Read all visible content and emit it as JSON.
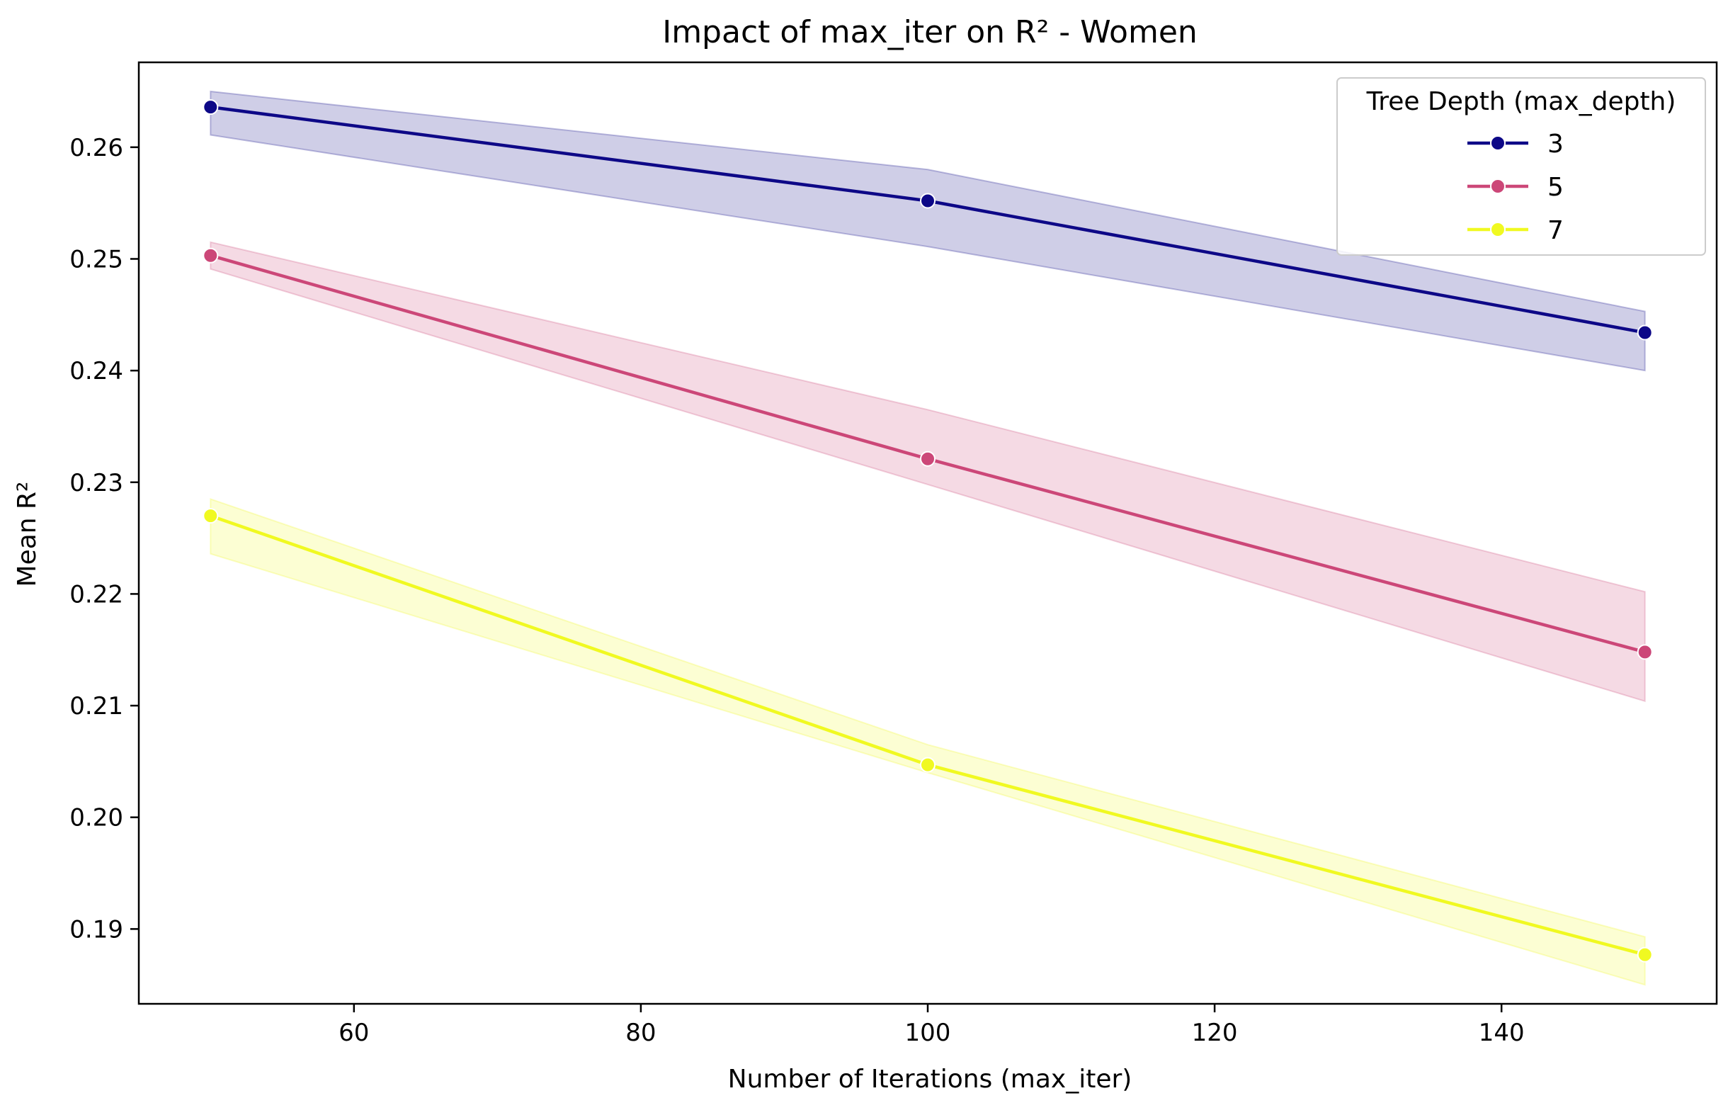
{
  "chart_data": {
    "type": "line",
    "title": "Impact of max_iter on R² - Women",
    "xlabel": "Number of Iterations (max_iter)",
    "ylabel": "Mean R²",
    "xlim": [
      45,
      155
    ],
    "ylim": [
      0.1833,
      0.2676
    ],
    "xticks": [
      60,
      80,
      100,
      120,
      140
    ],
    "xtick_labels": [
      "60",
      "80",
      "100",
      "120",
      "140"
    ],
    "yticks": [
      0.19,
      0.2,
      0.21,
      0.22,
      0.23,
      0.24,
      0.25,
      0.26
    ],
    "ytick_labels": [
      "0.19",
      "0.20",
      "0.21",
      "0.22",
      "0.23",
      "0.24",
      "0.25",
      "0.26"
    ],
    "grid": false,
    "legend": {
      "title": "Tree Depth (max_depth)",
      "placement": "top-right"
    },
    "x": [
      50,
      100,
      150
    ],
    "series": [
      {
        "name": "3",
        "color": "#0d0887",
        "values": [
          0.2636,
          0.2552,
          0.2434
        ],
        "lower": [
          0.2611,
          0.2511,
          0.24
        ],
        "upper": [
          0.265,
          0.258,
          0.2453
        ]
      },
      {
        "name": "5",
        "color": "#cc4778",
        "values": [
          0.2503,
          0.2321,
          0.2148
        ],
        "lower": [
          0.2491,
          0.2298,
          0.2104
        ],
        "upper": [
          0.2515,
          0.2365,
          0.2202
        ]
      },
      {
        "name": "7",
        "color": "#f0f921",
        "values": [
          0.227,
          0.2047,
          0.1877
        ],
        "lower": [
          0.2236,
          0.204,
          0.185
        ],
        "upper": [
          0.2285,
          0.2065,
          0.1893
        ]
      }
    ]
  }
}
